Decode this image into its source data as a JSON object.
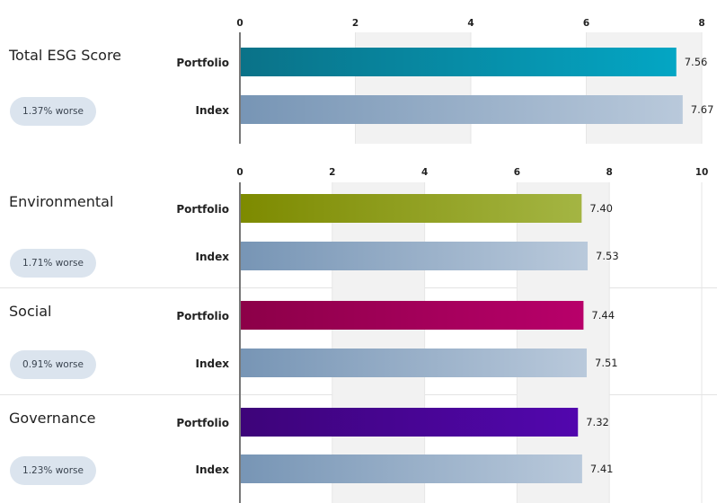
{
  "chart_data": [
    {
      "type": "bar",
      "orientation": "horizontal",
      "xlim": [
        0,
        8
      ],
      "ticks": [
        "0",
        "2",
        "4",
        "6",
        "8"
      ],
      "groups": [
        {
          "name": "Total ESG Score",
          "comparison": "1.37% worse",
          "bars": [
            {
              "label": "Portfolio",
              "value": 7.56,
              "value_label": "7.56",
              "colors": [
                "#0a7288",
                "#04a6c4"
              ]
            },
            {
              "label": "Index",
              "value": 7.67,
              "value_label": "7.67",
              "colors": [
                "#7795b5",
                "#b9c9db"
              ]
            }
          ]
        }
      ]
    },
    {
      "type": "bar",
      "orientation": "horizontal",
      "xlim": [
        0,
        10
      ],
      "ticks": [
        "0",
        "2",
        "4",
        "6",
        "8",
        "10"
      ],
      "groups": [
        {
          "name": "Environmental",
          "comparison": "1.71% worse",
          "bars": [
            {
              "label": "Portfolio",
              "value": 7.4,
              "value_label": "7.40",
              "colors": [
                "#7d8a00",
                "#a4b543"
              ]
            },
            {
              "label": "Index",
              "value": 7.53,
              "value_label": "7.53",
              "colors": [
                "#7795b5",
                "#b9c9db"
              ]
            }
          ]
        },
        {
          "name": "Social",
          "comparison": "0.91% worse",
          "bars": [
            {
              "label": "Portfolio",
              "value": 7.44,
              "value_label": "7.44",
              "colors": [
                "#8c0048",
                "#b8006a"
              ]
            },
            {
              "label": "Index",
              "value": 7.51,
              "value_label": "7.51",
              "colors": [
                "#7795b5",
                "#b9c9db"
              ]
            }
          ]
        },
        {
          "name": "Governance",
          "comparison": "1.23% worse",
          "bars": [
            {
              "label": "Portfolio",
              "value": 7.32,
              "value_label": "7.32",
              "colors": [
                "#3d0479",
                "#5206ae"
              ]
            },
            {
              "label": "Index",
              "value": 7.41,
              "value_label": "7.41",
              "colors": [
                "#7795b5",
                "#b9c9db"
              ]
            }
          ]
        }
      ]
    }
  ],
  "colors": {
    "grid_band": "#f2f2f2",
    "grid_line": "#e6e6e6",
    "axis": "#777777",
    "badge_bg": "#dbe4ee"
  }
}
